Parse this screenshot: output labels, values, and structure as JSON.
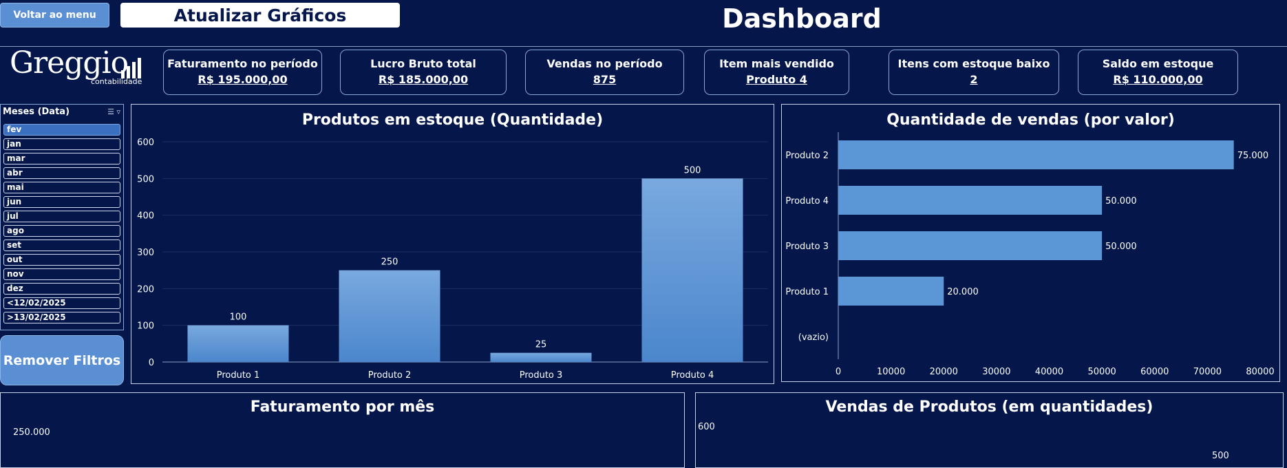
{
  "toolbar": {
    "menu_label": "Voltar ao menu",
    "update_label": "Atualizar Gráficos",
    "title": "Dashboard"
  },
  "logo": {
    "word": "Greggio",
    "sub": "contabilidade"
  },
  "kpis": [
    {
      "label": "Faturamento no período",
      "value": "R$ 195.000,00"
    },
    {
      "label": "Lucro Bruto total",
      "value": "R$ 185.000,00"
    },
    {
      "label": "Vendas no período",
      "value": "875"
    },
    {
      "label": "Item mais vendido",
      "value": "Produto 4"
    },
    {
      "label": "Itens com estoque baixo",
      "value": "2"
    },
    {
      "label": "Saldo em estoque",
      "value": "R$ 110.000,00"
    }
  ],
  "slicer": {
    "title": "Meses (Data)",
    "items": [
      "fev",
      "jan",
      "mar",
      "abr",
      "mai",
      "jun",
      "jul",
      "ago",
      "set",
      "out",
      "nov",
      "dez",
      "<12/02/2025",
      ">13/02/2025"
    ],
    "selected": "fev"
  },
  "remove_filters_label": "Remover Filtros",
  "panels": {
    "stock_title": "Produtos em estoque (Quantidade)",
    "sales_title": "Quantidade de vendas (por valor)",
    "revenue_title": "Faturamento por mês",
    "units_title": "Vendas de Produtos (em quantidades)"
  },
  "colors": {
    "background": "#04164a",
    "bar": "#5b96d6",
    "bar_top": "#79a9df",
    "bar_bottom": "#4b86cc"
  },
  "chart_data": [
    {
      "type": "bar",
      "title": "Produtos em estoque (Quantidade)",
      "categories": [
        "Produto 1",
        "Produto 2",
        "Produto 3",
        "Produto 4"
      ],
      "values": [
        100,
        250,
        25,
        500
      ],
      "ylim": [
        0,
        600
      ],
      "yticks": [
        0,
        100,
        200,
        300,
        400,
        500,
        600
      ],
      "grid": true
    },
    {
      "type": "bar",
      "orientation": "horizontal",
      "title": "Quantidade de vendas (por valor)",
      "categories": [
        "Produto 2",
        "Produto 4",
        "Produto 3",
        "Produto 1",
        "(vazio)"
      ],
      "values": [
        75000,
        50000,
        50000,
        20000,
        null
      ],
      "value_labels": [
        "75.000",
        "50.000",
        "50.000",
        "20.000",
        ""
      ],
      "xlim": [
        0,
        80000
      ],
      "xticks": [
        0,
        10000,
        20000,
        30000,
        40000,
        50000,
        60000,
        70000,
        80000
      ]
    },
    {
      "type": "bar",
      "title": "Faturamento por mês",
      "yticks_visible": [
        "250.000"
      ]
    },
    {
      "type": "bar",
      "title": "Vendas de Produtos (em quantidades)",
      "yticks_visible": [
        "600"
      ],
      "value_labels_visible": [
        "500"
      ]
    }
  ]
}
